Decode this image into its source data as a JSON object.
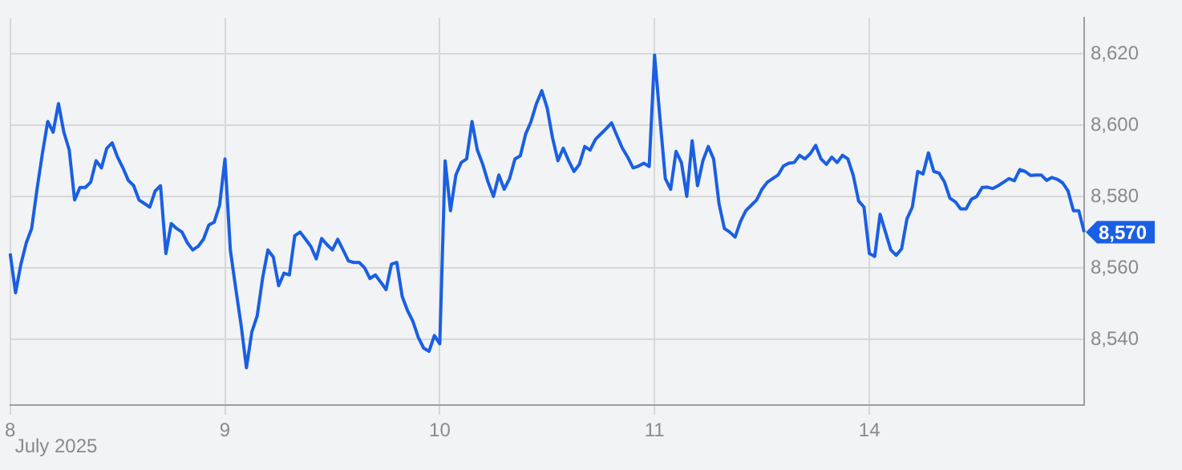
{
  "chart_data": {
    "type": "line",
    "color": "#1a5fe3",
    "line_style": "solid",
    "marker": "none",
    "grid": true,
    "legend": false,
    "categories": [
      "8",
      null,
      null,
      null,
      null,
      null,
      null,
      null,
      null,
      null,
      null,
      null,
      null,
      null,
      null,
      null,
      null,
      null,
      null,
      null,
      null,
      null,
      null,
      null,
      null,
      null,
      null,
      null,
      null,
      null,
      null,
      null,
      null,
      null,
      null,
      null,
      null,
      null,
      null,
      null,
      "9",
      null,
      null,
      null,
      null,
      null,
      null,
      null,
      null,
      null,
      null,
      null,
      null,
      null,
      null,
      null,
      null,
      null,
      null,
      null,
      null,
      null,
      null,
      null,
      null,
      null,
      null,
      null,
      null,
      null,
      null,
      null,
      null,
      null,
      null,
      null,
      null,
      null,
      null,
      null,
      "10",
      null,
      null,
      null,
      null,
      null,
      null,
      null,
      null,
      null,
      null,
      null,
      null,
      null,
      null,
      null,
      null,
      null,
      null,
      null,
      null,
      null,
      null,
      null,
      null,
      null,
      null,
      null,
      null,
      null,
      null,
      null,
      null,
      null,
      null,
      null,
      null,
      null,
      null,
      null,
      "11",
      null,
      null,
      null,
      null,
      null,
      null,
      null,
      null,
      null,
      null,
      null,
      null,
      null,
      null,
      null,
      null,
      null,
      null,
      null,
      null,
      null,
      null,
      null,
      null,
      null,
      null,
      null,
      null,
      null,
      null,
      null,
      null,
      null,
      null,
      null,
      null,
      null,
      null,
      null,
      "14",
      null,
      null,
      null,
      null,
      null,
      null,
      null,
      null,
      null,
      null,
      null,
      null,
      null,
      null,
      null,
      null,
      null,
      null,
      null,
      null,
      null,
      null,
      null,
      null,
      null,
      null,
      null,
      null,
      null,
      null,
      null,
      null,
      null,
      null,
      null,
      null,
      null,
      null,
      null,
      null
    ],
    "values": [
      8564,
      8553,
      8561,
      8567,
      8571,
      8582,
      8592,
      8601,
      8598,
      8606,
      8598,
      8593,
      8579,
      8582.5,
      8582.5,
      8584,
      8590,
      8588,
      8593.5,
      8595,
      8591,
      8588,
      8584.5,
      8583,
      8579,
      8578,
      8577,
      8581.5,
      8583,
      8564,
      8572.4,
      8571,
      8570,
      8567,
      8565,
      8566,
      8568,
      8572,
      8572.8,
      8577.5,
      8590.5,
      8565,
      8554.3,
      8544,
      8532,
      8542,
      8546.5,
      8557,
      8565,
      8563,
      8555,
      8558.5,
      8558,
      8569,
      8570,
      8568,
      8566,
      8562.5,
      8568.2,
      8566.5,
      8565,
      8568,
      8565,
      8561.9,
      8561.5,
      8561.5,
      8560,
      8557,
      8558,
      8556,
      8553.9,
      8561,
      8561.5,
      8552,
      8548,
      8545,
      8540.5,
      8537.5,
      8536.6,
      8541,
      8538.7,
      8590,
      8576,
      8586,
      8589.5,
      8590.5,
      8601,
      8593,
      8589,
      8584,
      8580,
      8586,
      8582,
      8585,
      8590.5,
      8591.4,
      8597.5,
      8601,
      8606,
      8609.6,
      8604.8,
      8596.4,
      8590,
      8593.5,
      8590,
      8587,
      8589,
      8594,
      8593,
      8596,
      8597.5,
      8599,
      8600.6,
      8597,
      8593.5,
      8591,
      8588,
      8588.5,
      8589.3,
      8588.4,
      8619.6,
      8602,
      8585,
      8582,
      8592.6,
      8589.5,
      8580,
      8595.6,
      8583,
      8590,
      8594,
      8590.5,
      8578,
      8571,
      8570,
      8568.6,
      8573,
      8576,
      8577.5,
      8579,
      8582,
      8584,
      8585,
      8586,
      8588.5,
      8589.3,
      8589.5,
      8591.5,
      8590.5,
      8592,
      8594.3,
      8590.5,
      8589,
      8591,
      8589.5,
      8591.5,
      8590.5,
      8585.9,
      8578.7,
      8577,
      8564,
      8563.2,
      8575,
      8570,
      8565,
      8563.5,
      8565.3,
      8573.7,
      8577,
      8587,
      8586.3,
      8592.2,
      8587,
      8586.5,
      8584,
      8579.5,
      8578.5,
      8576.5,
      8576.5,
      8579.2,
      8580,
      8582.5,
      8582.6,
      8582.2,
      8583,
      8584,
      8585,
      8584.4,
      8587.5,
      8587,
      8585.9,
      8586,
      8586,
      8584.5,
      8585.3,
      8584.8,
      8583.8,
      8581.5,
      8576,
      8576,
      8570
    ],
    "ylim": [
      8521.5,
      8630
    ],
    "yticks": [
      {
        "value": 8540,
        "label": "8,540"
      },
      {
        "value": 8560,
        "label": "8,560"
      },
      {
        "value": 8580,
        "label": "8,580"
      },
      {
        "value": 8600,
        "label": "8,600"
      },
      {
        "value": 8620,
        "label": "8,620"
      }
    ],
    "annotations": [
      "July 2025",
      "8,570"
    ]
  }
}
